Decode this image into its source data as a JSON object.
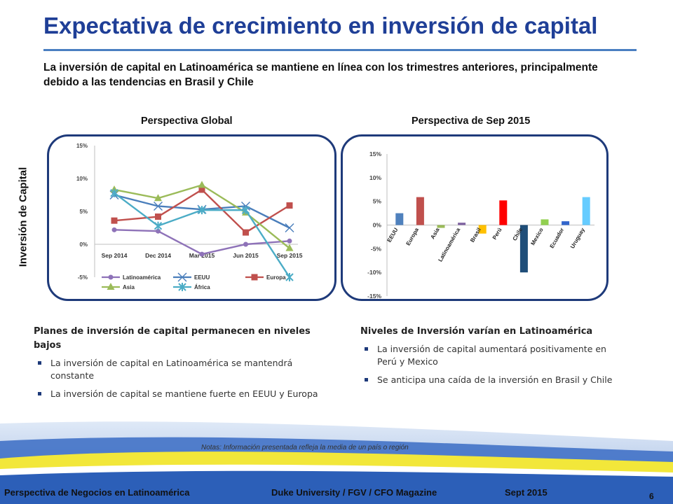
{
  "title": "Expectativa de crecimiento en inversión de capital",
  "subtitle": "La inversión de capital en Latinoamérica se mantiene en línea con los trimestres anteriores, principalmente debido a las tendencias en Brasil y Chile",
  "side_label": "Inversión de Capital",
  "panel_left_title": "Perspectiva Global",
  "panel_right_title": "Perspectiva de Sep 2015",
  "left_block": {
    "heading": "Planes de inversión de capital permanecen en niveles bajos",
    "bullets": [
      "La inversión de capital en Latinoamérica se mantendrá constante",
      "La inversión de capital se mantiene fuerte en EEUU y Europa"
    ]
  },
  "right_block": {
    "heading": "Niveles de Inversión varían en Latinoamérica",
    "bullets": [
      "La inversión de capital aumentará positivamente en Perú y Mexico",
      "Se anticipa una caída de la inversión en Brasil y Chile"
    ]
  },
  "notes": "Notas:  Información presentada refleja la media de un país o región",
  "footer": {
    "left": "Perspectiva de Negocios en Latinoamérica",
    "center": "Duke University / FGV / CFO Magazine",
    "right": "Sept 2015",
    "page": "6"
  },
  "chart_data": [
    {
      "type": "line",
      "x": [
        "Sep 2014",
        "Dec 2014",
        "Mar 2015",
        "Jun 2015",
        "Sep 2015"
      ],
      "ylim": [
        -5,
        15
      ],
      "yticks": [
        "15%",
        "10%",
        "5%",
        "0%",
        "-5%"
      ],
      "grid": false,
      "legend": "bottom",
      "series": [
        {
          "name": "Latinoamérica",
          "color": "#8e72b8",
          "marker": "circle",
          "values": [
            2.2,
            2.0,
            -1.5,
            0.0,
            0.5
          ]
        },
        {
          "name": "EEUU",
          "color": "#4a7ebb",
          "marker": "x",
          "values": [
            7.5,
            5.8,
            5.3,
            5.8,
            2.5
          ]
        },
        {
          "name": "Europa",
          "color": "#c0504d",
          "marker": "square",
          "values": [
            3.6,
            4.2,
            8.3,
            1.8,
            5.9
          ]
        },
        {
          "name": "Asia",
          "color": "#9bbb59",
          "marker": "triangle",
          "values": [
            8.3,
            7.0,
            9.0,
            4.8,
            -0.6
          ]
        },
        {
          "name": "África",
          "color": "#4bacc6",
          "marker": "star",
          "values": [
            7.8,
            2.8,
            5.2,
            5.2,
            -5.0
          ]
        }
      ]
    },
    {
      "type": "bar",
      "categories": [
        "EEUU",
        "Europa",
        "Asia",
        "Latinoamérica",
        "Brasil",
        "Perú",
        "Chile",
        "Mexico",
        "Ecuador",
        "Uruguay"
      ],
      "values": [
        2.5,
        5.9,
        -0.6,
        0.5,
        -1.8,
        5.2,
        -10.0,
        1.2,
        0.8,
        5.9
      ],
      "colors": [
        "#4f81bd",
        "#c0504d",
        "#9bbb59",
        "#8064a2",
        "#ffc000",
        "#ff0000",
        "#1f4e79",
        "#92d050",
        "#3366cc",
        "#66ccff"
      ],
      "ylim": [
        -15,
        15
      ],
      "yticks": [
        "15%",
        "10%",
        "5%",
        "0%",
        "-5%",
        "-10%",
        "-15%"
      ],
      "grid": false
    }
  ]
}
